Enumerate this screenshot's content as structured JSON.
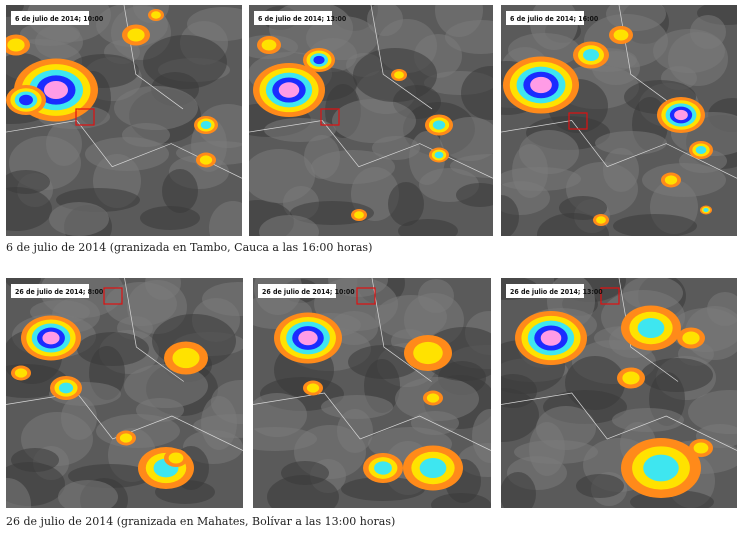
{
  "figure": {
    "rows": [
      {
        "panels": [
          {
            "label": "6 de julio de 2014; 10:00"
          },
          {
            "label": "6 de julio de 2014; 13:00"
          },
          {
            "label": "6 de julio de 2014; 16:00"
          }
        ],
        "caption": "6 de julio de 2014 (granizada en Tambo, Cauca a las 16:00 horas)"
      },
      {
        "panels": [
          {
            "label": "26 de julio de 2014; 8:00"
          },
          {
            "label": "26 de julio de 2014; 10:00"
          },
          {
            "label": "26 de julio de 2014; 13:00"
          }
        ],
        "caption": "26 de julio de 2014 (granizada en Mahates, Bolívar a las 13:00 horas)"
      }
    ]
  }
}
